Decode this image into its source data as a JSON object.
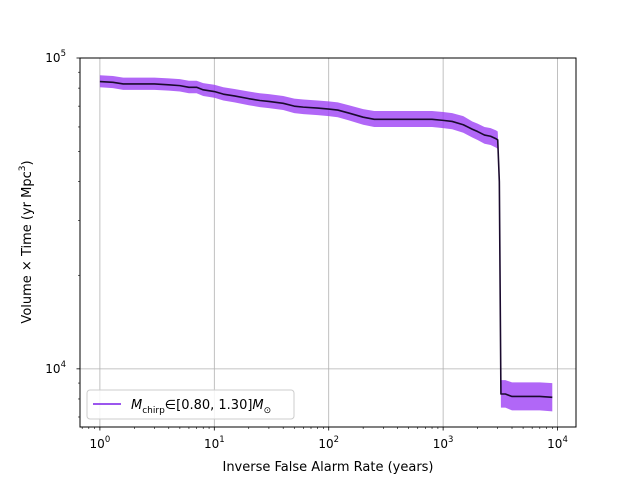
{
  "chart_data": {
    "type": "line",
    "title": "",
    "xlabel": "Inverse False Alarm Rate (years)",
    "ylabel_main": "Volume × Time (yr Mpc",
    "ylabel_sup": "3",
    "ylabel_end": ")",
    "xscale": "log",
    "yscale": "log",
    "xlim": [
      0.67,
      14500
    ],
    "ylim": [
      6500,
      100000
    ],
    "grid": true,
    "legend_position": "lower-left",
    "x_ticks": [
      {
        "base": "10",
        "exp": "0",
        "value": 1
      },
      {
        "base": "10",
        "exp": "1",
        "value": 10
      },
      {
        "base": "10",
        "exp": "2",
        "value": 100
      },
      {
        "base": "10",
        "exp": "3",
        "value": 1000
      },
      {
        "base": "10",
        "exp": "4",
        "value": 10000
      }
    ],
    "y_ticks": [
      {
        "base": "10",
        "exp": "4",
        "value": 10000
      },
      {
        "base": "10",
        "exp": "5",
        "value": 100000
      }
    ],
    "series": [
      {
        "legend_label": "M_chirp ∈ [0.80, 1.30] M_⊙",
        "legend_main": "M",
        "legend_sub": "chirp",
        "legend_mid": "∈[0.80, 1.30]",
        "legend_end_main": "M",
        "legend_end_sub": "⊙",
        "line_color": "#1a0a2e",
        "band_color": "#9b3cf5",
        "legend_color": "#7a1fe8",
        "x": [
          1,
          1.3,
          1.6,
          2,
          3,
          4,
          5,
          6,
          7,
          8,
          10,
          12,
          15,
          20,
          25,
          30,
          40,
          50,
          60,
          80,
          100,
          120,
          150,
          200,
          250,
          300,
          500,
          800,
          1000,
          1200,
          1500,
          1800,
          2000,
          2300,
          2600,
          2900,
          3000,
          3100,
          3200,
          3500,
          4000,
          5000,
          7000,
          9000
        ],
        "y": [
          84000,
          83500,
          82500,
          82500,
          82500,
          82000,
          81500,
          80500,
          80500,
          79000,
          78000,
          76500,
          75500,
          74000,
          73000,
          72500,
          71500,
          70000,
          69500,
          69000,
          68500,
          68000,
          66500,
          64500,
          63500,
          63500,
          63500,
          63500,
          63000,
          62500,
          61000,
          59000,
          58000,
          56500,
          56000,
          55000,
          54500,
          40000,
          8300,
          8300,
          8150,
          8150,
          8150,
          8100
        ],
        "lower": [
          80500,
          80000,
          79000,
          79000,
          79000,
          78500,
          78000,
          77000,
          77000,
          75500,
          74500,
          73000,
          72000,
          70500,
          69500,
          69000,
          68000,
          66500,
          66000,
          65500,
          65000,
          64500,
          63000,
          61000,
          60000,
          60000,
          60000,
          60000,
          59500,
          59000,
          57500,
          55500,
          54500,
          53000,
          52500,
          51500,
          51000,
          37000,
          7500,
          7500,
          7350,
          7350,
          7350,
          7300
        ],
        "upper": [
          88000,
          87500,
          86500,
          86500,
          86500,
          86000,
          85500,
          84500,
          84500,
          83000,
          82000,
          80500,
          79500,
          78000,
          77000,
          76500,
          75500,
          74000,
          73500,
          73000,
          72500,
          72000,
          70500,
          68500,
          67500,
          67500,
          67500,
          67500,
          67000,
          66500,
          65000,
          62500,
          61500,
          60000,
          59500,
          58500,
          58000,
          43000,
          9200,
          9200,
          9050,
          9050,
          9050,
          9000
        ]
      }
    ]
  }
}
